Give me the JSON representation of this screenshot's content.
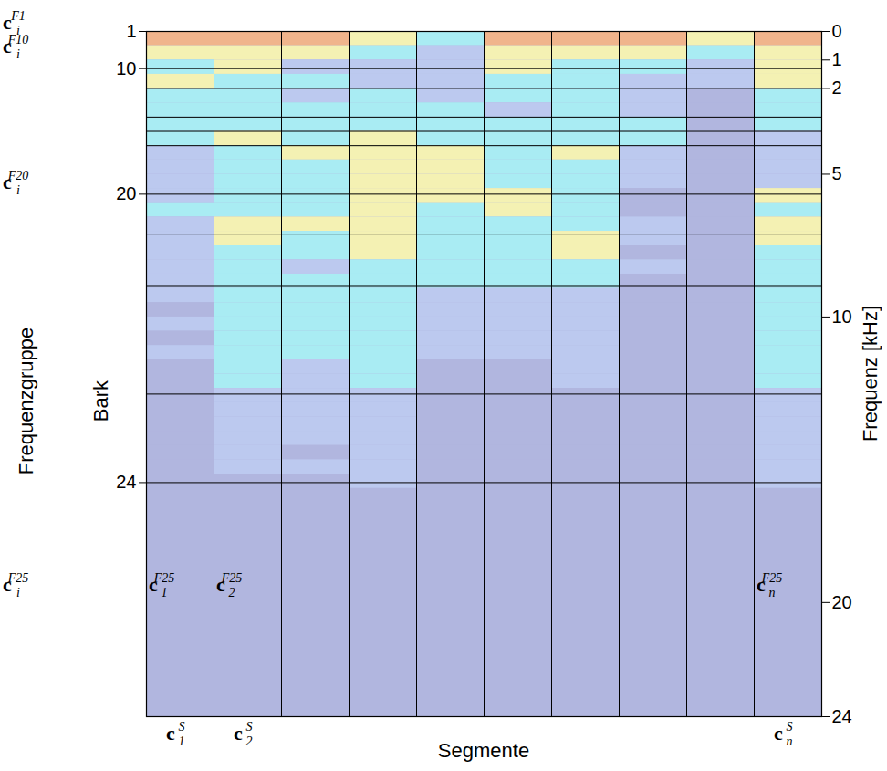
{
  "chart_data": {
    "type": "heatmap",
    "xlabel": "Segmente",
    "ylabel": "Frequenz [kHz]",
    "group_label": "Frequenzgruppe",
    "categories": [
      {
        "base": "c",
        "sub": "1",
        "sup": "S"
      },
      {
        "base": "c",
        "sub": "2",
        "sup": "S"
      },
      null,
      null,
      null,
      null,
      null,
      null,
      null,
      {
        "base": "c",
        "sub": "n",
        "sup": "S"
      }
    ],
    "ylim": [
      0,
      24
    ],
    "yticks": [
      0,
      1,
      2,
      5,
      10,
      20,
      24
    ],
    "bark_axis": {
      "label": "Bark",
      "ticks": [
        {
          "value": 0,
          "label": "1"
        },
        {
          "value": 1.3,
          "label": "10"
        },
        {
          "value": 5.7,
          "label": "20"
        },
        {
          "value": 15.8,
          "label": "24"
        }
      ]
    },
    "band_edges": [
      1.3,
      2.0,
      3.0,
      3.5,
      4.0,
      5.7,
      7.1,
      8.9,
      12.7,
      15.8
    ],
    "zlim": [
      0,
      4
    ],
    "colors": [
      "#b1b6df",
      "#bcc9ef",
      "#a9ecf3",
      "#f4f1b3",
      "#f0b48c"
    ],
    "cells": {
      "row_edges": [
        0,
        0.5,
        1,
        1.5,
        2,
        2.5,
        3,
        3.5,
        4,
        4.5,
        5,
        5.5,
        6,
        6.5,
        7,
        7.5,
        8,
        8.5,
        9,
        9.5,
        10,
        10.5,
        11,
        11.5,
        12,
        12.5,
        13,
        13.5,
        14,
        14.5,
        15,
        15.5,
        16
      ],
      "segments": [
        [
          4,
          3,
          2,
          3,
          2,
          2,
          2,
          2,
          1,
          1,
          1,
          1,
          2,
          1,
          1,
          1,
          1,
          1,
          1,
          0,
          1,
          0,
          1,
          0,
          0,
          0,
          0,
          0,
          0,
          0,
          0,
          0
        ],
        [
          4,
          3,
          3,
          2,
          2,
          2,
          2,
          3,
          2,
          2,
          2,
          2,
          2,
          3,
          3,
          2,
          2,
          2,
          2,
          2,
          2,
          2,
          2,
          2,
          2,
          1,
          1,
          1,
          1,
          1,
          1,
          0
        ],
        [
          4,
          3,
          1,
          2,
          1,
          2,
          2,
          2,
          3,
          2,
          2,
          2,
          2,
          3,
          2,
          2,
          1,
          2,
          2,
          2,
          2,
          2,
          2,
          1,
          1,
          1,
          1,
          1,
          1,
          0,
          1,
          0
        ],
        [
          3,
          2,
          1,
          1,
          2,
          2,
          2,
          3,
          3,
          3,
          3,
          3,
          3,
          3,
          3,
          3,
          2,
          2,
          2,
          2,
          2,
          2,
          2,
          2,
          2,
          1,
          1,
          1,
          1,
          1,
          1,
          1
        ],
        [
          2,
          1,
          1,
          1,
          1,
          2,
          2,
          2,
          3,
          3,
          3,
          3,
          2,
          2,
          2,
          2,
          2,
          2,
          1,
          1,
          1,
          1,
          1,
          0,
          0,
          0,
          0,
          0,
          0,
          0,
          0,
          0
        ],
        [
          4,
          3,
          3,
          2,
          2,
          1,
          2,
          2,
          2,
          2,
          2,
          3,
          3,
          2,
          2,
          2,
          2,
          2,
          1,
          1,
          1,
          1,
          1,
          0,
          0,
          0,
          0,
          0,
          0,
          0,
          0,
          0
        ],
        [
          4,
          3,
          2,
          2,
          2,
          2,
          2,
          2,
          3,
          2,
          2,
          2,
          2,
          2,
          3,
          3,
          2,
          2,
          1,
          1,
          1,
          1,
          1,
          1,
          1,
          0,
          0,
          0,
          0,
          0,
          0,
          0
        ],
        [
          4,
          3,
          2,
          1,
          1,
          1,
          2,
          2,
          1,
          1,
          1,
          0,
          0,
          1,
          1,
          0,
          1,
          0,
          0,
          0,
          0,
          0,
          0,
          0,
          0,
          0,
          0,
          0,
          0,
          0,
          0,
          0
        ],
        [
          3,
          2,
          1,
          1,
          0,
          0,
          0,
          0,
          0,
          0,
          0,
          0,
          0,
          0,
          0,
          0,
          0,
          0,
          0,
          0,
          0,
          0,
          0,
          0,
          0,
          0,
          0,
          0,
          0,
          0,
          0,
          0
        ],
        [
          4,
          3,
          3,
          3,
          2,
          2,
          2,
          1,
          1,
          1,
          1,
          3,
          2,
          3,
          3,
          2,
          2,
          2,
          2,
          2,
          2,
          2,
          2,
          2,
          2,
          1,
          1,
          1,
          1,
          1,
          1,
          1
        ]
      ]
    },
    "row_labels": [
      {
        "text": {
          "base": "c",
          "sub": "i",
          "sup": "F1"
        },
        "y": -0.3
      },
      {
        "text": {
          "base": "c",
          "sub": "i",
          "sup": "F10"
        },
        "y": 0.55
      },
      {
        "text": {
          "base": "c",
          "sub": "i",
          "sup": "F20"
        },
        "y": 5.3
      },
      {
        "text": {
          "base": "c",
          "sub": "i",
          "sup": "F25"
        },
        "y": 19.4
      }
    ],
    "cell_labels": [
      {
        "text": {
          "base": "c",
          "sub": "1",
          "sup": "F25"
        },
        "x": 0,
        "y": 19.4
      },
      {
        "text": {
          "base": "c",
          "sub": "2",
          "sup": "F25"
        },
        "x": 1,
        "y": 19.4
      },
      {
        "text": {
          "base": "c",
          "sub": "n",
          "sup": "F25"
        },
        "x": 9,
        "y": 19.4
      }
    ]
  }
}
